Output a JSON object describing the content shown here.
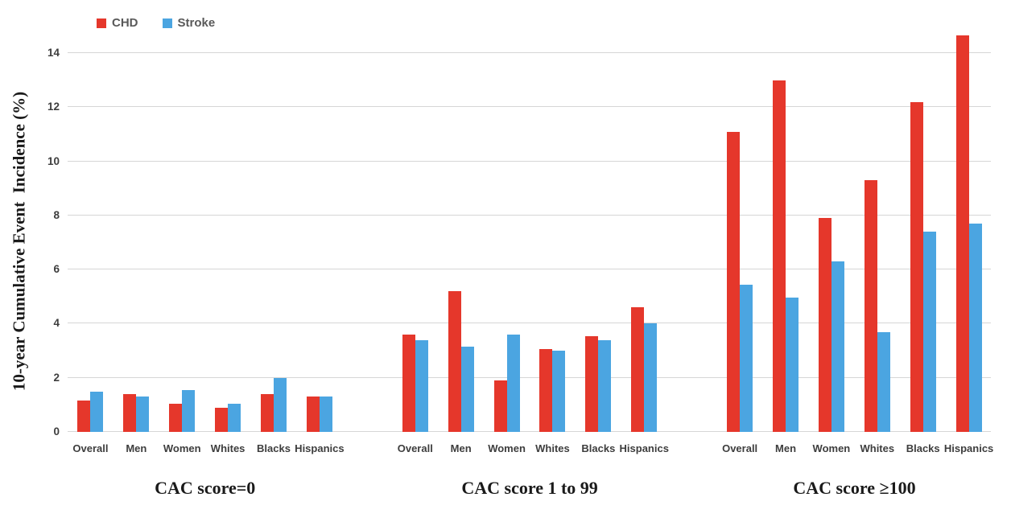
{
  "chart_data": {
    "type": "bar",
    "title": "",
    "ylabel": "10-year Cumulative Event  Incidence (%)",
    "ylim": [
      0,
      14
    ],
    "yticks": [
      0,
      2,
      4,
      6,
      8,
      10,
      12,
      14
    ],
    "grid": "horizontal",
    "legend_position": "top-left",
    "categories": [
      "Overall",
      "Men",
      "Women",
      "Whites",
      "Blacks",
      "Hispanics"
    ],
    "legend": [
      {
        "name": "CHD",
        "color": "#e5372b"
      },
      {
        "name": "Stroke",
        "color": "#4ba5e1"
      }
    ],
    "groups": [
      {
        "label": "CAC score=0",
        "series": [
          {
            "name": "CHD",
            "values": [
              1.15,
              1.4,
              1.05,
              0.9,
              1.4,
              1.3
            ]
          },
          {
            "name": "Stroke",
            "values": [
              1.5,
              1.3,
              1.55,
              1.05,
              2.0,
              1.3
            ]
          }
        ]
      },
      {
        "label": "CAC score 1 to 99",
        "series": [
          {
            "name": "CHD",
            "values": [
              3.6,
              5.2,
              1.9,
              3.05,
              3.55,
              4.6
            ]
          },
          {
            "name": "Stroke",
            "values": [
              3.4,
              3.15,
              3.6,
              3.0,
              3.4,
              4.0
            ]
          }
        ]
      },
      {
        "label": "CAC score ≥100",
        "series": [
          {
            "name": "CHD",
            "values": [
              11.1,
              13.0,
              7.9,
              9.3,
              12.2,
              14.65
            ]
          },
          {
            "name": "Stroke",
            "values": [
              5.45,
              4.95,
              6.3,
              3.7,
              7.4,
              7.7
            ]
          }
        ]
      }
    ],
    "colors": {
      "grid": "#d6d6d6",
      "axis": "#d6d6d6",
      "tick_text": "#3d3d3d",
      "category_text": "#3d3d3d",
      "legend_text": "#595959"
    }
  }
}
